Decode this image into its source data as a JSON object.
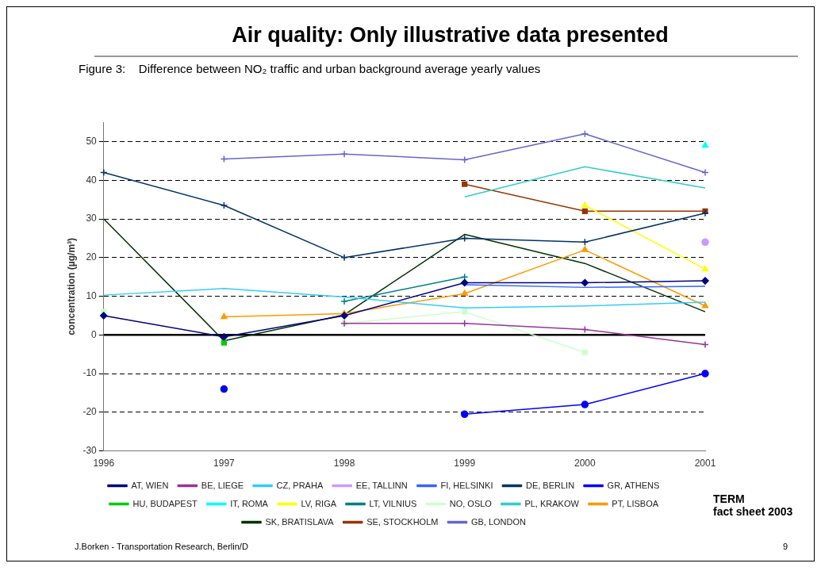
{
  "chart_data": {
    "type": "line",
    "title": "Air quality: Only illustrative data presented",
    "subtitle": "Figure 3:    Difference between NO₂ traffic and urban background average yearly values",
    "ylabel": "concentration (µg/m³)",
    "categories": [
      "1996",
      "1997",
      "1998",
      "1999",
      "2000",
      "2001"
    ],
    "ylim": [
      -30,
      55
    ],
    "yticks": [
      -30,
      -20,
      -10,
      0,
      10,
      20,
      30,
      40,
      50
    ],
    "grid": "y",
    "legend": "bottom",
    "line_style": "solid",
    "ref_lines": [
      {
        "axis": "y",
        "value": 0,
        "color": "#000000"
      }
    ],
    "annotations": [
      "TERM\nfact sheet 2003",
      "J.Borken - Transportation Research, Berlin/D",
      "9"
    ],
    "series": [
      {
        "name": "AT, WIEN",
        "color": "#000080",
        "marker": "diamond",
        "values": [
          5,
          -0.5,
          5,
          13.5,
          13.5,
          14
        ]
      },
      {
        "name": "BE, LIEGE",
        "color": "#993399",
        "marker": "cross",
        "values": [
          null,
          null,
          3,
          3,
          1.4,
          -2.5
        ]
      },
      {
        "name": "CZ, PRAHA",
        "color": "#33ccff",
        "marker": "none",
        "values": [
          10.3,
          12,
          9.8,
          7,
          7.5,
          8.5
        ]
      },
      {
        "name": "EE, TALLINN",
        "color": "#cc99ff",
        "marker": "circle",
        "values": [
          null,
          null,
          null,
          null,
          null,
          24
        ]
      },
      {
        "name": "FI, HELSINKI",
        "color": "#3366ff",
        "marker": "none",
        "values": [
          null,
          null,
          null,
          13,
          12.3,
          12.6
        ]
      },
      {
        "name": "DE, BERLIN",
        "color": "#003366",
        "marker": "cross",
        "values": [
          42,
          33.5,
          20,
          25,
          24,
          31.5
        ]
      },
      {
        "name": "GR, ATHENS",
        "color": "#0000ff",
        "marker": "circle",
        "values": [
          null,
          -14,
          null,
          -20.5,
          -18,
          -10
        ]
      },
      {
        "name": "HU, BUDAPEST",
        "color": "#00cc00",
        "marker": "square",
        "values": [
          null,
          -2,
          null,
          null,
          null,
          null
        ]
      },
      {
        "name": "IT, ROMA",
        "color": "#00ffff",
        "marker": "triangle",
        "values": [
          null,
          null,
          null,
          null,
          null,
          49
        ]
      },
      {
        "name": "LV, RIGA",
        "color": "#ffff00",
        "marker": "triangle",
        "values": [
          null,
          null,
          null,
          null,
          33.5,
          17
        ]
      },
      {
        "name": "LT, VILNIUS",
        "color": "#008080",
        "marker": "cross",
        "values": [
          null,
          null,
          8.7,
          15,
          null,
          null
        ]
      },
      {
        "name": "NO, OSLO",
        "color": "#ccffcc",
        "marker": "square",
        "values": [
          6,
          null,
          3,
          6,
          -4.5,
          null
        ]
      },
      {
        "name": "PL, KRAKOW",
        "color": "#33cccc",
        "marker": "none",
        "values": [
          null,
          null,
          null,
          35.7,
          43.5,
          38
        ]
      },
      {
        "name": "PT, LISBOA",
        "color": "#ff9900",
        "marker": "triangle",
        "values": [
          null,
          4.7,
          5.5,
          10.7,
          22,
          7.5
        ]
      },
      {
        "name": "SK, BRATISLAVA",
        "color": "#003300",
        "marker": "none",
        "values": [
          30,
          -1.5,
          5.2,
          26,
          18.5,
          6
        ]
      },
      {
        "name": "SE, STOCKHOLM",
        "color": "#993300",
        "marker": "square",
        "values": [
          null,
          null,
          null,
          39,
          32,
          32
        ]
      },
      {
        "name": "GB, LONDON",
        "color": "#6666cc",
        "marker": "cross",
        "values": [
          null,
          45.5,
          46.8,
          45.3,
          52,
          42
        ]
      }
    ]
  }
}
